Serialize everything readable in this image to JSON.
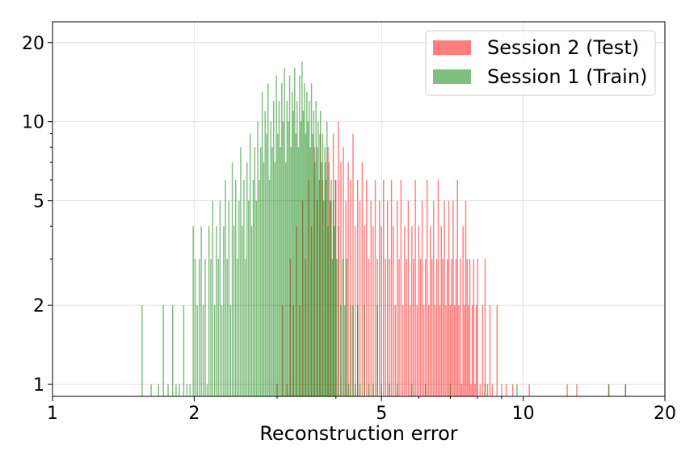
{
  "chart_data": {
    "type": "histogram",
    "xlabel": "Reconstruction error",
    "ylabel": "",
    "x_scale": "log",
    "y_scale": "log",
    "xlim": [
      1,
      20
    ],
    "ylim": [
      0.9,
      24
    ],
    "x_ticks": [
      1,
      2,
      5,
      10,
      20
    ],
    "x_tick_labels": [
      "1",
      "2",
      "5",
      "10",
      "20"
    ],
    "y_ticks": [
      1,
      2,
      5,
      10,
      20
    ],
    "y_tick_labels": [
      "1",
      "2",
      "5",
      "10",
      "20"
    ],
    "grid": true,
    "legend_position": "top-right",
    "series": [
      {
        "name": "Session 2 (Test)",
        "color": "#ff0000",
        "alpha": 0.5,
        "counts": [
          [
            3.0,
            1
          ],
          [
            3.08,
            2
          ],
          [
            3.15,
            1
          ],
          [
            3.2,
            3
          ],
          [
            3.25,
            2
          ],
          [
            3.3,
            4
          ],
          [
            3.35,
            2
          ],
          [
            3.4,
            5
          ],
          [
            3.45,
            3
          ],
          [
            3.5,
            6
          ],
          [
            3.55,
            4
          ],
          [
            3.6,
            8
          ],
          [
            3.65,
            5
          ],
          [
            3.7,
            9
          ],
          [
            3.75,
            6
          ],
          [
            3.8,
            7
          ],
          [
            3.85,
            8
          ],
          [
            3.9,
            5
          ],
          [
            3.95,
            9
          ],
          [
            4.0,
            6
          ],
          [
            4.05,
            10
          ],
          [
            4.1,
            7
          ],
          [
            4.15,
            8
          ],
          [
            4.2,
            5
          ],
          [
            4.25,
            7
          ],
          [
            4.3,
            6
          ],
          [
            4.35,
            9
          ],
          [
            4.4,
            4
          ],
          [
            4.45,
            6
          ],
          [
            4.5,
            5
          ],
          [
            4.55,
            7
          ],
          [
            4.6,
            4
          ],
          [
            4.65,
            6
          ],
          [
            4.7,
            3
          ],
          [
            4.75,
            5
          ],
          [
            4.8,
            4
          ],
          [
            4.85,
            6
          ],
          [
            4.9,
            3
          ],
          [
            4.95,
            5
          ],
          [
            5.0,
            4
          ],
          [
            5.05,
            6
          ],
          [
            5.1,
            3
          ],
          [
            5.15,
            5
          ],
          [
            5.2,
            3
          ],
          [
            5.25,
            6
          ],
          [
            5.3,
            4
          ],
          [
            5.35,
            2
          ],
          [
            5.4,
            5
          ],
          [
            5.45,
            3
          ],
          [
            5.5,
            6
          ],
          [
            5.55,
            2
          ],
          [
            5.6,
            4
          ],
          [
            5.65,
            3
          ],
          [
            5.7,
            5
          ],
          [
            5.75,
            2
          ],
          [
            5.8,
            4
          ],
          [
            5.85,
            3
          ],
          [
            5.9,
            6
          ],
          [
            5.95,
            2
          ],
          [
            6.0,
            4
          ],
          [
            6.05,
            3
          ],
          [
            6.1,
            5
          ],
          [
            6.15,
            2
          ],
          [
            6.2,
            3
          ],
          [
            6.25,
            6
          ],
          [
            6.3,
            2
          ],
          [
            6.35,
            4
          ],
          [
            6.4,
            3
          ],
          [
            6.45,
            5
          ],
          [
            6.5,
            2
          ],
          [
            6.55,
            3
          ],
          [
            6.6,
            6
          ],
          [
            6.65,
            2
          ],
          [
            6.7,
            4
          ],
          [
            6.75,
            3
          ],
          [
            6.8,
            5
          ],
          [
            6.85,
            2
          ],
          [
            6.9,
            3
          ],
          [
            6.95,
            5
          ],
          [
            7.0,
            2
          ],
          [
            7.05,
            3
          ],
          [
            7.1,
            5
          ],
          [
            7.15,
            2
          ],
          [
            7.2,
            3
          ],
          [
            7.25,
            6
          ],
          [
            7.3,
            2
          ],
          [
            7.35,
            3
          ],
          [
            7.4,
            1
          ],
          [
            7.45,
            4
          ],
          [
            7.5,
            2
          ],
          [
            7.55,
            5
          ],
          [
            7.6,
            3
          ],
          [
            7.65,
            2
          ],
          [
            7.7,
            3
          ],
          [
            7.75,
            1
          ],
          [
            7.8,
            2
          ],
          [
            7.85,
            3
          ],
          [
            7.9,
            1
          ],
          [
            7.95,
            2
          ],
          [
            8.0,
            3
          ],
          [
            8.1,
            1
          ],
          [
            8.2,
            2
          ],
          [
            8.3,
            3
          ],
          [
            8.4,
            1
          ],
          [
            8.5,
            2
          ],
          [
            8.6,
            1
          ],
          [
            8.8,
            2
          ],
          [
            9.0,
            1
          ],
          [
            9.2,
            1
          ],
          [
            9.5,
            1
          ],
          [
            10.3,
            1
          ],
          [
            12.4,
            1
          ],
          [
            13.0,
            1
          ],
          [
            15.2,
            1
          ],
          [
            16.5,
            1
          ]
        ]
      },
      {
        "name": "Session 1 (Train)",
        "color": "#008000",
        "alpha": 0.5,
        "counts": [
          [
            1.55,
            2
          ],
          [
            1.62,
            1
          ],
          [
            1.68,
            1
          ],
          [
            1.72,
            2
          ],
          [
            1.76,
            1
          ],
          [
            1.8,
            2
          ],
          [
            1.83,
            1
          ],
          [
            1.86,
            1
          ],
          [
            1.9,
            2
          ],
          [
            1.93,
            1
          ],
          [
            1.96,
            1
          ],
          [
            1.99,
            4
          ],
          [
            2.01,
            3
          ],
          [
            2.03,
            2
          ],
          [
            2.05,
            3
          ],
          [
            2.07,
            4
          ],
          [
            2.09,
            2
          ],
          [
            2.11,
            3
          ],
          [
            2.13,
            1
          ],
          [
            2.15,
            4
          ],
          [
            2.17,
            3
          ],
          [
            2.19,
            5
          ],
          [
            2.21,
            2
          ],
          [
            2.23,
            4
          ],
          [
            2.25,
            3
          ],
          [
            2.27,
            5
          ],
          [
            2.29,
            2
          ],
          [
            2.31,
            4
          ],
          [
            2.33,
            6
          ],
          [
            2.35,
            3
          ],
          [
            2.37,
            5
          ],
          [
            2.39,
            2
          ],
          [
            2.41,
            7
          ],
          [
            2.43,
            4
          ],
          [
            2.45,
            6
          ],
          [
            2.47,
            3
          ],
          [
            2.49,
            5
          ],
          [
            2.51,
            8
          ],
          [
            2.53,
            4
          ],
          [
            2.55,
            6
          ],
          [
            2.57,
            3
          ],
          [
            2.59,
            7
          ],
          [
            2.61,
            5
          ],
          [
            2.63,
            9
          ],
          [
            2.65,
            4
          ],
          [
            2.67,
            6
          ],
          [
            2.69,
            8
          ],
          [
            2.71,
            5
          ],
          [
            2.73,
            10
          ],
          [
            2.75,
            6
          ],
          [
            2.77,
            8
          ],
          [
            2.79,
            13
          ],
          [
            2.81,
            7
          ],
          [
            2.83,
            11
          ],
          [
            2.85,
            9
          ],
          [
            2.87,
            14
          ],
          [
            2.89,
            6
          ],
          [
            2.91,
            10
          ],
          [
            2.93,
            8
          ],
          [
            2.95,
            12
          ],
          [
            2.97,
            7
          ],
          [
            2.99,
            15
          ],
          [
            3.01,
            9
          ],
          [
            3.03,
            12
          ],
          [
            3.05,
            8
          ],
          [
            3.07,
            14
          ],
          [
            3.09,
            10
          ],
          [
            3.11,
            16
          ],
          [
            3.13,
            7
          ],
          [
            3.15,
            12
          ],
          [
            3.17,
            10
          ],
          [
            3.19,
            15
          ],
          [
            3.21,
            8
          ],
          [
            3.23,
            13
          ],
          [
            3.25,
            11
          ],
          [
            3.27,
            16
          ],
          [
            3.29,
            9
          ],
          [
            3.31,
            12
          ],
          [
            3.33,
            8
          ],
          [
            3.35,
            15
          ],
          [
            3.37,
            10
          ],
          [
            3.39,
            17
          ],
          [
            3.41,
            11
          ],
          [
            3.43,
            14
          ],
          [
            3.45,
            9
          ],
          [
            3.47,
            13
          ],
          [
            3.49,
            10
          ],
          [
            3.51,
            12
          ],
          [
            3.53,
            8
          ],
          [
            3.55,
            14
          ],
          [
            3.57,
            9
          ],
          [
            3.59,
            11
          ],
          [
            3.61,
            7
          ],
          [
            3.63,
            12
          ],
          [
            3.65,
            8
          ],
          [
            3.67,
            10
          ],
          [
            3.69,
            6
          ],
          [
            3.71,
            11
          ],
          [
            3.73,
            7
          ],
          [
            3.75,
            9
          ],
          [
            3.77,
            5
          ],
          [
            3.79,
            8
          ],
          [
            3.81,
            6
          ],
          [
            3.83,
            10
          ],
          [
            3.85,
            4
          ],
          [
            3.87,
            7
          ],
          [
            3.89,
            5
          ],
          [
            3.91,
            6
          ],
          [
            3.93,
            3
          ],
          [
            3.95,
            5
          ],
          [
            3.97,
            4
          ],
          [
            3.99,
            6
          ],
          [
            4.02,
            3
          ],
          [
            4.06,
            4
          ],
          [
            4.1,
            2
          ],
          [
            4.14,
            3
          ],
          [
            4.18,
            2
          ],
          [
            4.22,
            3
          ],
          [
            4.26,
            1
          ],
          [
            4.3,
            2
          ],
          [
            4.35,
            2
          ],
          [
            4.4,
            1
          ],
          [
            4.45,
            2
          ],
          [
            4.5,
            1
          ],
          [
            4.6,
            2
          ],
          [
            4.7,
            1
          ],
          [
            4.8,
            1
          ],
          [
            4.9,
            2
          ],
          [
            5.0,
            1
          ],
          [
            5.2,
            1
          ],
          [
            5.4,
            1
          ],
          [
            5.8,
            1
          ],
          [
            6.2,
            1
          ],
          [
            7.0,
            1
          ],
          [
            8.3,
            1
          ],
          [
            9.7,
            1
          ],
          [
            15.2,
            1
          ],
          [
            16.5,
            1
          ]
        ]
      }
    ]
  }
}
